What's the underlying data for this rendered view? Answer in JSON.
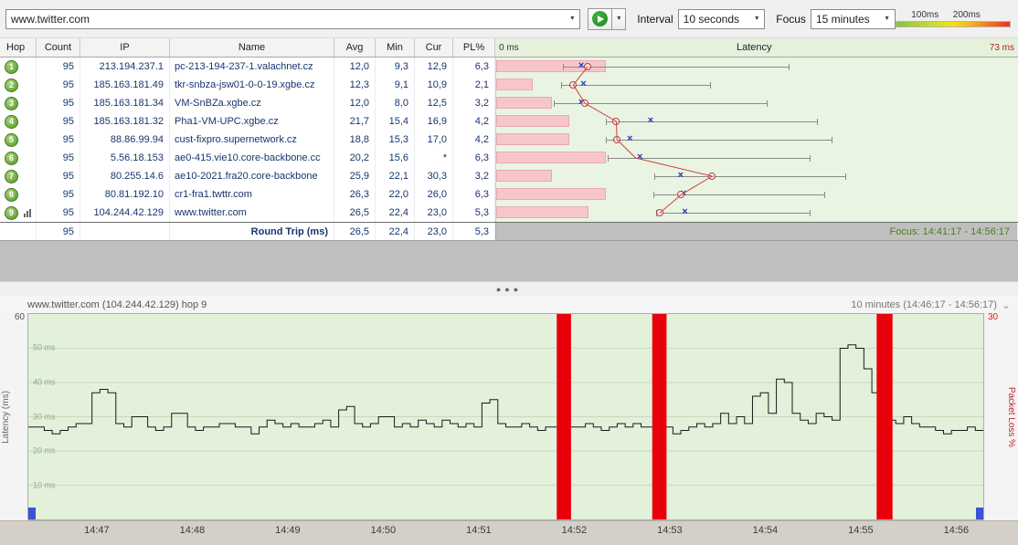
{
  "toolbar": {
    "target_input": "www.twitter.com",
    "interval_label": "Interval",
    "interval_value": "10 seconds",
    "focus_label": "Focus",
    "focus_value": "15 minutes",
    "legend_labels": [
      "100ms",
      "200ms"
    ]
  },
  "trace_table": {
    "columns": [
      "Hop",
      "Count",
      "IP",
      "Name",
      "Avg",
      "Min",
      "Cur",
      "PL%"
    ],
    "latency_header": {
      "left": "0 ms",
      "center": "Latency",
      "right": "73 ms"
    },
    "rows": [
      {
        "hop": "1",
        "count": "95",
        "ip": "213.194.237.1",
        "name": "pc-213-194-237-1.valachnet.cz",
        "avg": "12,0",
        "min": "9,3",
        "cur": "12,9",
        "pl": "6,3",
        "has_graph_icon": false
      },
      {
        "hop": "2",
        "count": "95",
        "ip": "185.163.181.49",
        "name": "tkr-snbza-jsw01-0-0-19.xgbe.cz",
        "avg": "12,3",
        "min": "9,1",
        "cur": "10,9",
        "pl": "2,1",
        "has_graph_icon": false
      },
      {
        "hop": "3",
        "count": "95",
        "ip": "185.163.181.34",
        "name": "VM-SnBZa.xgbe.cz",
        "avg": "12,0",
        "min": "8,0",
        "cur": "12,5",
        "pl": "3,2",
        "has_graph_icon": false
      },
      {
        "hop": "4",
        "count": "95",
        "ip": "185.163.181.32",
        "name": "Pha1-VM-UPC.xgbe.cz",
        "avg": "21,7",
        "min": "15,4",
        "cur": "16,9",
        "pl": "4,2",
        "has_graph_icon": false
      },
      {
        "hop": "5",
        "count": "95",
        "ip": "88.86.99.94",
        "name": "cust-fixpro.supernetwork.cz",
        "avg": "18,8",
        "min": "15,3",
        "cur": "17,0",
        "pl": "4,2",
        "has_graph_icon": false
      },
      {
        "hop": "6",
        "count": "95",
        "ip": "5.56.18.153",
        "name": "ae0-415.vie10.core-backbone.cc",
        "avg": "20,2",
        "min": "15,6",
        "cur": "*",
        "pl": "6,3",
        "has_graph_icon": false
      },
      {
        "hop": "7",
        "count": "95",
        "ip": "80.255.14.6",
        "name": "ae10-2021.fra20.core-backbone",
        "avg": "25,9",
        "min": "22,1",
        "cur": "30,3",
        "pl": "3,2",
        "has_graph_icon": false
      },
      {
        "hop": "8",
        "count": "95",
        "ip": "80.81.192.10",
        "name": "cr1-fra1.twttr.com",
        "avg": "26,3",
        "min": "22,0",
        "cur": "26,0",
        "pl": "6,3",
        "has_graph_icon": false
      },
      {
        "hop": "9",
        "count": "95",
        "ip": "104.244.42.129",
        "name": "www.twitter.com",
        "avg": "26,5",
        "min": "22,4",
        "cur": "23,0",
        "pl": "5,3",
        "has_graph_icon": true
      }
    ],
    "summary": {
      "count": "95",
      "label": "Round Trip (ms)",
      "avg": "26,5",
      "min": "22,4",
      "cur": "23,0",
      "pl": "5,3",
      "focus_text": "Focus: 14:41:17 - 14:56:17"
    }
  },
  "timeline": {
    "title": "www.twitter.com (104.244.42.129) hop 9",
    "range_label": "10 minutes (14:46:17 - 14:56:17)",
    "y_left_max": "60",
    "y_right_max": "30",
    "y_left_label": "Latency (ms)",
    "y_right_label": "Packet Loss %",
    "gridline_labels": [
      "50 ms",
      "40 ms",
      "30 ms",
      "20 ms",
      "10 ms"
    ],
    "gridline_values": [
      50,
      40,
      30,
      20,
      10
    ],
    "x_labels": [
      "14:47",
      "14:48",
      "14:49",
      "14:50",
      "14:51",
      "14:52",
      "14:53",
      "14:54",
      "14:55",
      "14:56"
    ]
  },
  "chart_data": [
    {
      "type": "scatter",
      "title": "Trace graph: per-hop latency (ms) and packet loss",
      "x_range_ms": [
        0,
        73
      ],
      "pl_bar_scale_max_pct": 30,
      "hops": [
        {
          "hop": 1,
          "min": 9.3,
          "max": 41,
          "avg": 12.0,
          "cur": 12.9,
          "cur_plot": 12.9,
          "pl_pct": 6.3
        },
        {
          "hop": 2,
          "min": 9.1,
          "max": 30,
          "avg": 12.3,
          "cur": 10.9,
          "cur_plot": 10.9,
          "pl_pct": 2.1
        },
        {
          "hop": 3,
          "min": 8.0,
          "max": 38,
          "avg": 12.0,
          "cur": 12.5,
          "cur_plot": 12.5,
          "pl_pct": 3.2
        },
        {
          "hop": 4,
          "min": 15.4,
          "max": 45,
          "avg": 21.7,
          "cur": 16.9,
          "cur_plot": 16.9,
          "pl_pct": 4.2
        },
        {
          "hop": 5,
          "min": 15.3,
          "max": 47,
          "avg": 18.8,
          "cur": 17.0,
          "cur_plot": 17.0,
          "pl_pct": 4.2
        },
        {
          "hop": 6,
          "min": 15.6,
          "max": 44,
          "avg": 20.2,
          "cur": null,
          "cur_plot": 19.6,
          "pl_pct": 6.3
        },
        {
          "hop": 7,
          "min": 22.1,
          "max": 49,
          "avg": 25.9,
          "cur": 30.3,
          "cur_plot": 30.3,
          "pl_pct": 3.2
        },
        {
          "hop": 8,
          "min": 22.0,
          "max": 46,
          "avg": 26.3,
          "cur": 26.0,
          "cur_plot": 26.0,
          "pl_pct": 6.3
        },
        {
          "hop": 9,
          "min": 22.4,
          "max": 44,
          "avg": 26.5,
          "cur": 23.0,
          "cur_plot": 23.0,
          "pl_pct": 5.3
        }
      ]
    },
    {
      "type": "line",
      "title": "www.twitter.com (104.244.42.129) hop 9",
      "ylabel_left": "Latency (ms)",
      "ylabel_right": "Packet Loss %",
      "ylim_left": [
        0,
        60
      ],
      "ylim_right": [
        0,
        30
      ],
      "x_seconds_range": [
        0,
        600
      ],
      "x_start_time": "14:46:17",
      "x_end_time": "14:56:17",
      "t_step": 5,
      "latency_values": [
        27,
        27,
        26,
        25,
        26,
        27,
        28,
        28,
        37,
        38,
        37,
        28,
        27,
        30,
        30,
        27,
        26,
        27,
        31,
        31,
        27,
        26,
        27,
        27,
        28,
        28,
        27,
        27,
        25,
        27,
        29,
        28,
        27,
        28,
        27,
        27,
        28,
        29,
        27,
        32,
        33,
        28,
        27,
        28,
        30,
        30,
        27,
        28,
        27,
        29,
        28,
        27,
        29,
        28,
        27,
        28,
        27,
        34,
        35,
        28,
        27,
        27,
        28,
        27,
        26,
        27,
        27,
        28,
        27,
        27,
        28,
        27,
        26,
        27,
        28,
        27,
        28,
        27,
        27,
        28,
        27,
        25,
        26,
        27,
        28,
        27,
        28,
        31,
        28,
        30,
        28,
        36,
        37,
        31,
        41,
        40,
        31,
        29,
        28,
        31,
        30,
        29,
        50,
        51,
        50,
        44,
        37,
        30,
        29,
        28,
        30,
        28,
        27,
        27,
        26,
        25,
        26,
        26,
        27,
        26,
        26
      ],
      "packet_loss_bars": [
        {
          "t": 332,
          "w": 9,
          "pct": 30
        },
        {
          "t": 392,
          "w": 9,
          "pct": 30
        },
        {
          "t": 533,
          "w": 10,
          "pct": 30
        }
      ],
      "x_tick_seconds": [
        43,
        103,
        163,
        223,
        283,
        343,
        403,
        463,
        523,
        583
      ]
    }
  ]
}
